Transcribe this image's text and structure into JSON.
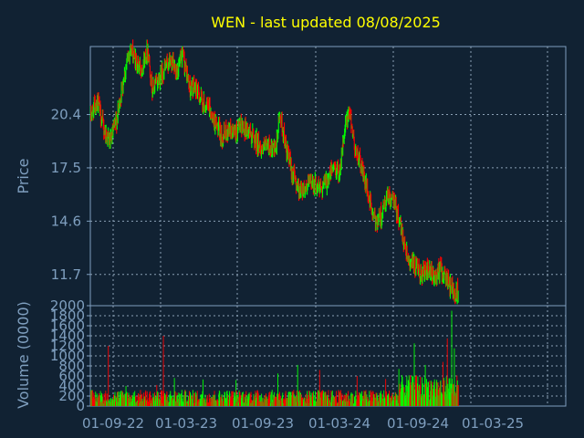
{
  "chart_data": [
    {
      "type": "candlestick",
      "title": "WEN - last updated 08/08/2025",
      "ylabel": "Price",
      "ylim": [
        10.0,
        24.1
      ],
      "yticks": [
        {
          "value": 20.4,
          "label": "20.4"
        },
        {
          "value": 17.5,
          "label": "17.5"
        },
        {
          "value": 14.6,
          "label": "14.6"
        },
        {
          "value": 11.7,
          "label": "11.7"
        }
      ],
      "x_range": [
        0,
        1080
      ],
      "up_color": "#00ff00",
      "down_color": "#ff0000",
      "grid": true,
      "price_path": [
        [
          0,
          20.3
        ],
        [
          15,
          21.2
        ],
        [
          30,
          19.6
        ],
        [
          45,
          18.9
        ],
        [
          60,
          20.2
        ],
        [
          75,
          22.4
        ],
        [
          90,
          24.0
        ],
        [
          105,
          23.2
        ],
        [
          115,
          22.9
        ],
        [
          130,
          24.0
        ],
        [
          140,
          21.7
        ],
        [
          160,
          22.6
        ],
        [
          180,
          23.3
        ],
        [
          195,
          22.8
        ],
        [
          210,
          23.5
        ],
        [
          225,
          21.9
        ],
        [
          240,
          21.8
        ],
        [
          255,
          21.0
        ],
        [
          270,
          20.7
        ],
        [
          285,
          19.8
        ],
        [
          300,
          19.2
        ],
        [
          315,
          19.6
        ],
        [
          330,
          19.4
        ],
        [
          345,
          19.8
        ],
        [
          360,
          19.5
        ],
        [
          375,
          19.0
        ],
        [
          390,
          18.5
        ],
        [
          405,
          18.7
        ],
        [
          420,
          18.3
        ],
        [
          430,
          20.5
        ],
        [
          445,
          18.4
        ],
        [
          460,
          17.1
        ],
        [
          475,
          16.3
        ],
        [
          490,
          16.5
        ],
        [
          505,
          16.8
        ],
        [
          520,
          16.4
        ],
        [
          535,
          16.7
        ],
        [
          550,
          17.5
        ],
        [
          565,
          17.3
        ],
        [
          580,
          19.9
        ],
        [
          590,
          20.4
        ],
        [
          600,
          18.6
        ],
        [
          615,
          17.6
        ],
        [
          630,
          16.1
        ],
        [
          645,
          14.6
        ],
        [
          660,
          14.9
        ],
        [
          675,
          15.9
        ],
        [
          690,
          15.6
        ],
        [
          705,
          14.3
        ],
        [
          720,
          12.7
        ],
        [
          735,
          12.1
        ],
        [
          750,
          11.7
        ],
        [
          765,
          11.9
        ],
        [
          780,
          11.5
        ],
        [
          795,
          12.0
        ],
        [
          810,
          11.4
        ],
        [
          825,
          10.7
        ],
        [
          835,
          10.8
        ]
      ]
    },
    {
      "type": "bar",
      "ylabel": "Volume (0000)",
      "ylim": [
        0,
        2000
      ],
      "yticks": [
        {
          "value": 2000,
          "label": "2000"
        },
        {
          "value": 1800,
          "label": "1800"
        },
        {
          "value": 1600,
          "label": "1600"
        },
        {
          "value": 1400,
          "label": "1400"
        },
        {
          "value": 1200,
          "label": "1200"
        },
        {
          "value": 1000,
          "label": "1000"
        },
        {
          "value": 800,
          "label": "800"
        },
        {
          "value": 600,
          "label": "600"
        },
        {
          "value": 400,
          "label": "400"
        },
        {
          "value": 200,
          "label": "200"
        },
        {
          "value": 0,
          "label": "0"
        }
      ],
      "xticks": [
        "01-09-22",
        "01-03-23",
        "01-09-23",
        "01-03-24",
        "01-09-24",
        "01-03-25"
      ],
      "base_volume": 250,
      "spikes": [
        {
          "x": 40,
          "value": 1200
        },
        {
          "x": 80,
          "value": 400
        },
        {
          "x": 150,
          "value": 420
        },
        {
          "x": 165,
          "value": 1400
        },
        {
          "x": 190,
          "value": 560
        },
        {
          "x": 255,
          "value": 530
        },
        {
          "x": 330,
          "value": 520
        },
        {
          "x": 425,
          "value": 650
        },
        {
          "x": 470,
          "value": 820
        },
        {
          "x": 520,
          "value": 720
        },
        {
          "x": 605,
          "value": 600
        },
        {
          "x": 670,
          "value": 540
        },
        {
          "x": 700,
          "value": 740
        },
        {
          "x": 735,
          "value": 1250
        },
        {
          "x": 760,
          "value": 820
        },
        {
          "x": 780,
          "value": 480
        },
        {
          "x": 800,
          "value": 880
        },
        {
          "x": 810,
          "value": 1350
        },
        {
          "x": 820,
          "value": 1900
        },
        {
          "x": 826,
          "value": 1150
        }
      ]
    }
  ]
}
